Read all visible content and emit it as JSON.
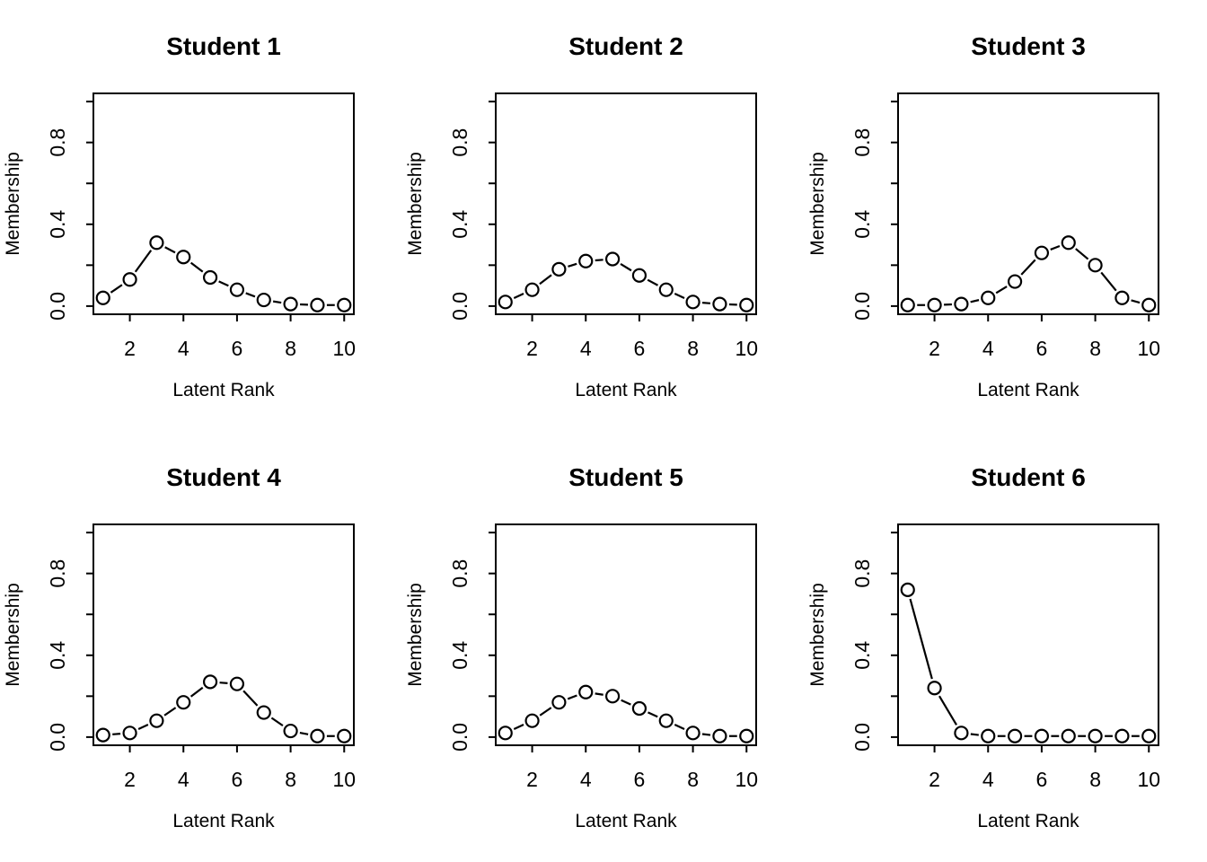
{
  "figure": {
    "background_color": "#ffffff",
    "foreground_color": "#000000",
    "layout": {
      "rows": 2,
      "cols": 3
    }
  },
  "chart_data": {
    "type": "line",
    "marker": "open-circle",
    "line_style": "solid-segments-with-gaps-at-points",
    "xlabel": "Latent Rank",
    "ylabel": "Membership",
    "x": [
      1,
      2,
      3,
      4,
      5,
      6,
      7,
      8,
      9,
      10
    ],
    "xticks": [
      2,
      4,
      6,
      8,
      10
    ],
    "xtick_labels": [
      "2",
      "4",
      "6",
      "8",
      "10"
    ],
    "yticks": [
      0,
      0.2,
      0.4,
      0.6,
      0.8,
      1.0
    ],
    "ytick_labels": [
      "0.0",
      "",
      "0.4",
      "",
      "0.8",
      ""
    ],
    "xlim": [
      0.64,
      10.36
    ],
    "ylim": [
      -0.04,
      1.04
    ],
    "grid": false,
    "legend": "none",
    "series": [
      {
        "name": "Student 1",
        "values": [
          0.04,
          0.13,
          0.31,
          0.24,
          0.14,
          0.08,
          0.03,
          0.01,
          0.005,
          0.005
        ]
      },
      {
        "name": "Student 2",
        "values": [
          0.02,
          0.08,
          0.18,
          0.22,
          0.23,
          0.15,
          0.08,
          0.02,
          0.01,
          0.005
        ]
      },
      {
        "name": "Student 3",
        "values": [
          0.005,
          0.005,
          0.01,
          0.04,
          0.12,
          0.26,
          0.31,
          0.2,
          0.04,
          0.005
        ]
      },
      {
        "name": "Student 4",
        "values": [
          0.01,
          0.02,
          0.08,
          0.17,
          0.27,
          0.26,
          0.12,
          0.03,
          0.005,
          0.005
        ]
      },
      {
        "name": "Student 5",
        "values": [
          0.02,
          0.08,
          0.17,
          0.22,
          0.2,
          0.14,
          0.08,
          0.02,
          0.005,
          0.005
        ]
      },
      {
        "name": "Student 6",
        "values": [
          0.72,
          0.24,
          0.02,
          0.005,
          0.005,
          0.005,
          0.005,
          0.005,
          0.005,
          0.005
        ]
      }
    ]
  }
}
